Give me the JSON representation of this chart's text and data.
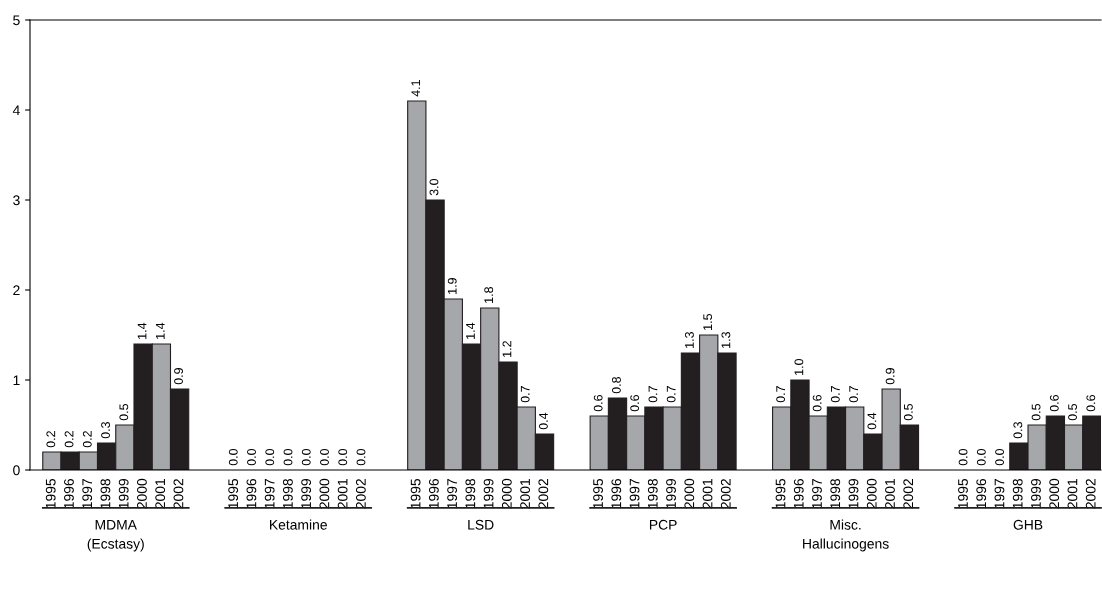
{
  "chart_data": {
    "type": "bar",
    "categories": [
      "1995",
      "1996",
      "1997",
      "1998",
      "1999",
      "2000",
      "2001",
      "2002",
      null,
      null,
      "1995",
      "1996",
      "1997",
      "1998",
      "1999",
      "2000",
      "2001",
      "2002",
      null,
      null,
      "1995",
      "1996",
      "1997",
      "1998",
      "1999",
      "2000",
      "2001",
      "2002",
      null,
      null,
      "1995",
      "1996",
      "1997",
      "1998",
      "1999",
      "2000",
      "2001",
      "2002",
      null,
      null,
      "1995",
      "1996",
      "1997",
      "1998",
      "1999",
      "2000",
      "2001",
      "2002",
      null,
      null,
      "1995",
      "1996",
      "1997",
      "1998",
      "1999",
      "2000",
      "2001",
      "2002"
    ],
    "values": [
      0.2,
      0.2,
      0.2,
      0.3,
      0.5,
      1.4,
      1.4,
      0.9,
      null,
      null,
      0.0,
      0.0,
      0.0,
      0.0,
      0.0,
      0.0,
      0.0,
      0.0,
      null,
      null,
      4.1,
      3.0,
      1.9,
      1.4,
      1.8,
      1.2,
      0.7,
      0.4,
      null,
      null,
      0.6,
      0.8,
      0.6,
      0.7,
      0.7,
      1.3,
      1.5,
      1.3,
      null,
      null,
      0.7,
      1.0,
      0.6,
      0.7,
      0.7,
      0.4,
      0.9,
      0.5,
      null,
      null,
      0.0,
      0.0,
      0.0,
      0.3,
      0.5,
      0.6,
      0.5,
      0.6
    ],
    "value_labels": [
      "0.2",
      "0.2",
      "0.2",
      "0.3",
      "0.5",
      "1.4",
      "1.4",
      "0.9",
      null,
      null,
      "0.0",
      "0.0",
      "0.0",
      "0.0",
      "0.0",
      "0.0",
      "0.0",
      "0.0",
      null,
      null,
      "4.1",
      "3.0",
      "1.9",
      "1.4",
      "1.8",
      "1.2",
      "0.7",
      "0.4",
      null,
      null,
      "0.6",
      "0.8",
      "0.6",
      "0.7",
      "0.7",
      "1.3",
      "1.5",
      "1.3",
      null,
      null,
      "0.7",
      "1.0",
      "0.6",
      "0.7",
      "0.7",
      "0.4",
      "0.9",
      "0.5",
      null,
      null,
      "0.0",
      "0.0",
      "0.0",
      "0.3",
      "0.5",
      "0.6",
      "0.5",
      "0.6"
    ],
    "colors": [
      "#a6a7aa",
      "#231f20",
      "#a6a7aa",
      "#231f20",
      "#a6a7aa",
      "#231f20",
      "#a6a7aa",
      "#231f20",
      null,
      null,
      "#a6a7aa",
      "#231f20",
      "#a6a7aa",
      "#231f20",
      "#a6a7aa",
      "#231f20",
      "#a6a7aa",
      "#231f20",
      null,
      null,
      "#a6a7aa",
      "#231f20",
      "#a6a7aa",
      "#231f20",
      "#a6a7aa",
      "#231f20",
      "#a6a7aa",
      "#231f20",
      null,
      null,
      "#a6a7aa",
      "#231f20",
      "#a6a7aa",
      "#231f20",
      "#a6a7aa",
      "#231f20",
      "#a6a7aa",
      "#231f20",
      null,
      null,
      "#a6a7aa",
      "#231f20",
      "#a6a7aa",
      "#231f20",
      "#a6a7aa",
      "#231f20",
      "#a6a7aa",
      "#231f20",
      null,
      null,
      "#a6a7aa",
      "#231f20",
      "#a6a7aa",
      "#231f20",
      "#a6a7aa",
      "#231f20",
      "#a6a7aa",
      "#231f20"
    ],
    "annotations": [
      "MDMA\n(Ecstasy)",
      "Ketamine",
      "LSD",
      "PCP",
      "Misc.\nHallucinogens",
      "GHB"
    ],
    "ylim": [
      0,
      5
    ],
    "yticks": [
      0,
      1,
      2,
      3,
      4,
      5
    ],
    "grid": false,
    "legend": false
  }
}
